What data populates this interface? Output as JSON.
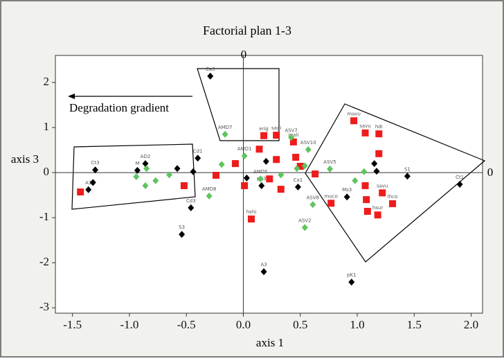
{
  "chart_data": {
    "type": "scatter",
    "title": "Factorial plan 1-3",
    "xlabel": "axis 1",
    "ylabel": "axis 3",
    "origin_labels": [
      "0",
      "0"
    ],
    "annotation": "Degradation gradient",
    "xlim": [
      -1.65,
      2.1
    ],
    "ylim": [
      -3.12,
      2.6
    ],
    "xticks": [
      -1.5,
      {
        "value": -1.0,
        "label": "-1.0"
      },
      -0.5,
      {
        "value": 0.0,
        "label": "0.0"
      },
      0.5,
      {
        "value": 1.0,
        "label": "1.0"
      },
      1.5,
      {
        "value": 2.0,
        "label": "2.0"
      }
    ],
    "yticks": [
      2,
      1,
      0,
      -1,
      -2,
      -3
    ],
    "series": [
      {
        "color": "#000000",
        "marker": "diamond",
        "x": [
          -0.29,
          -1.3,
          -1.36,
          -1.32,
          1.9,
          1.44,
          -0.46,
          -0.54,
          0.18,
          0.95,
          0.16,
          0.91,
          0.48,
          -0.93,
          -0.44,
          -0.4,
          0.03,
          1.15,
          1.17,
          0.2,
          -0.86,
          -0.58
        ],
        "values": [
          2.14,
          0.06,
          -0.38,
          -0.22,
          -0.26,
          -0.08,
          -0.78,
          -1.37,
          -2.2,
          -2.43,
          -0.29,
          -0.54,
          -0.32,
          0.05,
          0.02,
          0.32,
          -0.12,
          0.2,
          0.03,
          0.25,
          0.2,
          0.09
        ],
        "labels": [
          "Ca3",
          "Ct3",
          "A1",
          null,
          "Ct1",
          "S1",
          "Cd3",
          "S3",
          "A3",
          "pK1",
          "pK3",
          "Ms3",
          "Ca1",
          "M",
          null,
          "Cd1",
          null,
          null,
          null,
          null,
          "AD2",
          null
        ]
      },
      {
        "color": "#ee1c1c",
        "marker": "square",
        "x": [
          -1.43,
          0.07,
          0.97,
          1.07,
          1.19,
          0.63,
          0.44,
          0.29,
          0.18,
          1.07,
          1.08,
          1.09,
          1.18,
          1.22,
          1.31,
          0.77,
          0.33,
          0.01,
          -0.52,
          0.29,
          0.14,
          1.19,
          0.23,
          -0.24,
          -0.07,
          0.5,
          0.46
        ],
        "values": [
          -0.43,
          -1.03,
          1.15,
          0.88,
          0.86,
          -0.03,
          0.68,
          0.83,
          0.82,
          -0.29,
          -0.6,
          -0.86,
          -0.94,
          -0.45,
          -0.69,
          -0.68,
          -0.37,
          -0.29,
          -0.29,
          0.29,
          0.52,
          0.42,
          -0.14,
          -0.06,
          0.2,
          0.14,
          0.34
        ],
        "labels": [
          null,
          "hshi",
          "mavu",
          "savu",
          "hdi",
          null,
          "mali",
          "sagi",
          "erig",
          null,
          null,
          null,
          "hsur",
          "savu",
          "lhco",
          "muco",
          null,
          null,
          null,
          null,
          null,
          null,
          null,
          null,
          null,
          null,
          null
        ]
      },
      {
        "color": "#5fc45f",
        "marker": "diamond",
        "x": [
          -0.16,
          0.42,
          0.57,
          0.76,
          0.61,
          0.54,
          -0.3,
          1.06,
          0.98,
          -0.86,
          -0.85,
          -0.65,
          -0.77,
          -0.94,
          0.01,
          0.47,
          0.54,
          0.15,
          0.33,
          -0.19
        ],
        "values": [
          0.85,
          0.78,
          0.51,
          0.08,
          -0.71,
          -1.22,
          -0.52,
          0.02,
          -0.18,
          -0.29,
          0.09,
          -0.05,
          -0.18,
          -0.09,
          0.37,
          0.09,
          0.15,
          -0.14,
          -0.05,
          0.18
        ],
        "labels": [
          "AMD7",
          "ASV7",
          "ASV10",
          "ASV5",
          "ASV8",
          "ASV2",
          "AMD8",
          null,
          null,
          null,
          null,
          null,
          null,
          null,
          "AMD1",
          null,
          null,
          "AMD5",
          null,
          null
        ]
      }
    ]
  }
}
